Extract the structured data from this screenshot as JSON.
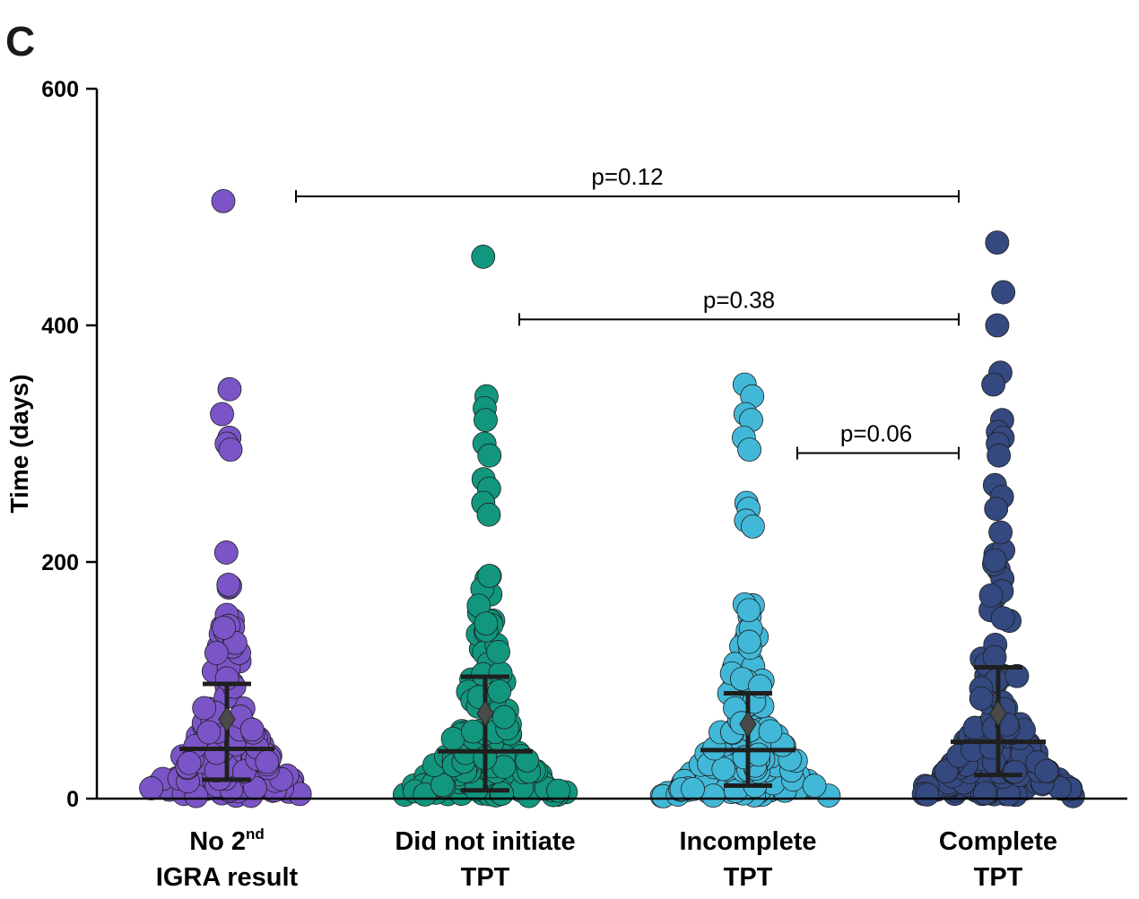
{
  "panel_letter": "C",
  "chart_data": {
    "type": "scatter",
    "subtype": "beeswarm",
    "ylabel": "Time  (days)",
    "ylim": [
      0,
      600
    ],
    "yticks": [
      "0",
      "200",
      "400",
      "600"
    ],
    "groups": [
      {
        "name": "No 2nd IGRA result",
        "label_line1": "No 2",
        "label_sup": "nd",
        "label_line2": "IGRA result",
        "color": "#7B55C7",
        "mean": 67,
        "median": 42,
        "q1": 16,
        "q3": 97,
        "outliers": [
          505,
          346,
          325,
          305,
          300,
          295,
          208
        ]
      },
      {
        "name": "Did not initiate TPT",
        "label_line1": "Did not initiate",
        "label_sup": "",
        "label_line2": "TPT",
        "color": "#12967E",
        "mean": 72,
        "median": 40,
        "q1": 7,
        "q3": 103,
        "outliers": [
          458,
          340,
          330,
          320,
          300,
          290,
          270,
          262,
          250,
          240
        ]
      },
      {
        "name": "Incomplete TPT",
        "label_line1": "Incomplete",
        "label_sup": "",
        "label_line2": "TPT",
        "color": "#42B8D8",
        "mean": 63,
        "median": 41,
        "q1": 11,
        "q3": 89,
        "outliers": [
          350,
          340,
          325,
          320,
          305,
          295,
          250,
          245,
          235,
          230
        ]
      },
      {
        "name": "Complete TPT",
        "label_line1": "Complete",
        "label_sup": "",
        "label_line2": "TPT",
        "color": "#34497F",
        "mean": 72,
        "median": 48,
        "q1": 20,
        "q3": 111,
        "outliers": [
          470,
          428,
          400,
          360,
          350,
          320,
          310,
          305,
          300,
          290,
          265,
          255,
          245,
          225
        ]
      }
    ],
    "comparisons": [
      {
        "label": "p=0.12",
        "from_group": 0,
        "to_group": 3,
        "y": 509
      },
      {
        "label": "p=0.38",
        "from_group": 1,
        "to_group": 3,
        "y": 405
      },
      {
        "label": "p=0.06",
        "from_group": 2,
        "to_group": 3,
        "y": 292
      }
    ]
  }
}
